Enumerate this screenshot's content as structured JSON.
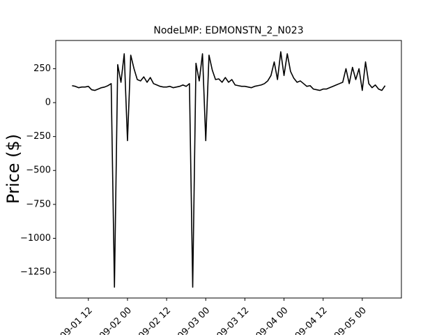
{
  "chart_data": {
    "type": "line",
    "title": "NodeLMP: EDMONSTN_2_N023",
    "y_label": "Price ($)",
    "x": [
      "09-01 07",
      "09-01 08",
      "09-01 09",
      "09-01 10",
      "09-01 11",
      "09-01 12",
      "09-01 13",
      "09-01 14",
      "09-01 15",
      "09-01 16",
      "09-01 17",
      "09-01 18",
      "09-01 19",
      "09-01 20",
      "09-01 21",
      "09-01 22",
      "09-01 23",
      "09-02 00",
      "09-02 01",
      "09-02 02",
      "09-02 03",
      "09-02 04",
      "09-02 05",
      "09-02 06",
      "09-02 07",
      "09-02 08",
      "09-02 09",
      "09-02 10",
      "09-02 11",
      "09-02 12",
      "09-02 13",
      "09-02 14",
      "09-02 15",
      "09-02 16",
      "09-02 17",
      "09-02 18",
      "09-02 19",
      "09-02 20",
      "09-02 21",
      "09-02 22",
      "09-02 23",
      "09-03 00",
      "09-03 01",
      "09-03 02",
      "09-03 03",
      "09-03 04",
      "09-03 05",
      "09-03 06",
      "09-03 07",
      "09-03 08",
      "09-03 09",
      "09-03 10",
      "09-03 11",
      "09-03 12",
      "09-03 13",
      "09-03 14",
      "09-03 15",
      "09-03 16",
      "09-03 17",
      "09-03 18",
      "09-03 19",
      "09-03 20",
      "09-03 21",
      "09-03 22",
      "09-03 23",
      "09-04 00",
      "09-04 01",
      "09-04 02",
      "09-04 03",
      "09-04 04",
      "09-04 05",
      "09-04 06",
      "09-04 07",
      "09-04 08",
      "09-04 09",
      "09-04 10",
      "09-04 11",
      "09-04 12",
      "09-04 13",
      "09-04 14",
      "09-04 15",
      "09-04 16",
      "09-04 17",
      "09-04 18",
      "09-04 19",
      "09-04 20",
      "09-04 21",
      "09-04 22",
      "09-04 23",
      "09-05 00",
      "09-05 01",
      "09-05 02",
      "09-05 03",
      "09-05 04",
      "09-05 05",
      "09-05 06",
      "09-05 07"
    ],
    "series": [
      {
        "color": "#000000",
        "values": [
          125,
          120,
          110,
          115,
          115,
          120,
          95,
          90,
          100,
          110,
          115,
          125,
          140,
          -1360,
          280,
          150,
          360,
          -280,
          350,
          250,
          170,
          160,
          190,
          150,
          185,
          140,
          130,
          120,
          115,
          115,
          120,
          110,
          115,
          120,
          130,
          120,
          140,
          -1360,
          290,
          160,
          360,
          -280,
          350,
          240,
          170,
          175,
          150,
          185,
          150,
          170,
          130,
          125,
          120,
          120,
          115,
          110,
          120,
          125,
          130,
          140,
          160,
          200,
          300,
          170,
          375,
          200,
          360,
          230,
          180,
          150,
          160,
          140,
          120,
          125,
          100,
          95,
          90,
          100,
          100,
          110,
          120,
          130,
          140,
          150,
          250,
          140,
          260,
          170,
          250,
          90,
          300,
          140,
          110,
          130,
          100,
          90,
          125
        ]
      }
    ],
    "xlim": [
      "09-01 02",
      "09-05 12"
    ],
    "xticks": [
      "09-01 12",
      "09-02 00",
      "09-02 12",
      "09-03 00",
      "09-03 12",
      "09-04 00",
      "09-04 12",
      "09-05 00"
    ],
    "ylim": [
      -1440,
      458
    ],
    "yticks": [
      {
        "value": -1250,
        "label": "−1250"
      },
      {
        "value": -1000,
        "label": "−1000"
      },
      {
        "value": -750,
        "label": "−750"
      },
      {
        "value": -500,
        "label": "−500"
      },
      {
        "value": -250,
        "label": "−250"
      },
      0,
      250
    ]
  }
}
